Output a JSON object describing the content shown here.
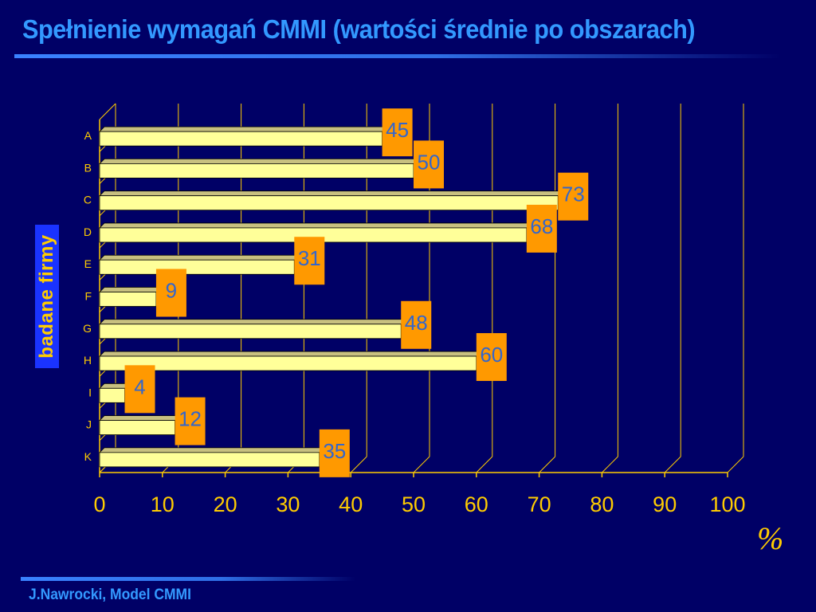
{
  "slide": {
    "title": "Spełnienie wymagań CMMI (wartości średnie po obszarach)",
    "footer": "J.Nawrocki, Model CMMI"
  },
  "colors": {
    "background": "#000066",
    "title": "#3399ff",
    "bar_face": "#ffff99",
    "bar_top": "#c8c080",
    "label_box": "#ff9900",
    "label_text": "#3366cc",
    "axis_text": "#ffcc00",
    "grid": "#ffcc00"
  },
  "chart_data": {
    "type": "bar",
    "orientation": "horizontal",
    "style": "3d",
    "categories": [
      "A",
      "B",
      "C",
      "D",
      "E",
      "F",
      "G",
      "H",
      "I",
      "J",
      "K"
    ],
    "values": [
      45,
      50,
      73,
      68,
      31,
      9,
      48,
      60,
      4,
      12,
      35
    ],
    "ylabel": "badane firmy",
    "xunit": "%",
    "xlim": [
      0,
      100
    ],
    "xticks": [
      0,
      10,
      20,
      30,
      40,
      50,
      60,
      70,
      80,
      90,
      100
    ],
    "grid": true,
    "data_labels": true
  }
}
